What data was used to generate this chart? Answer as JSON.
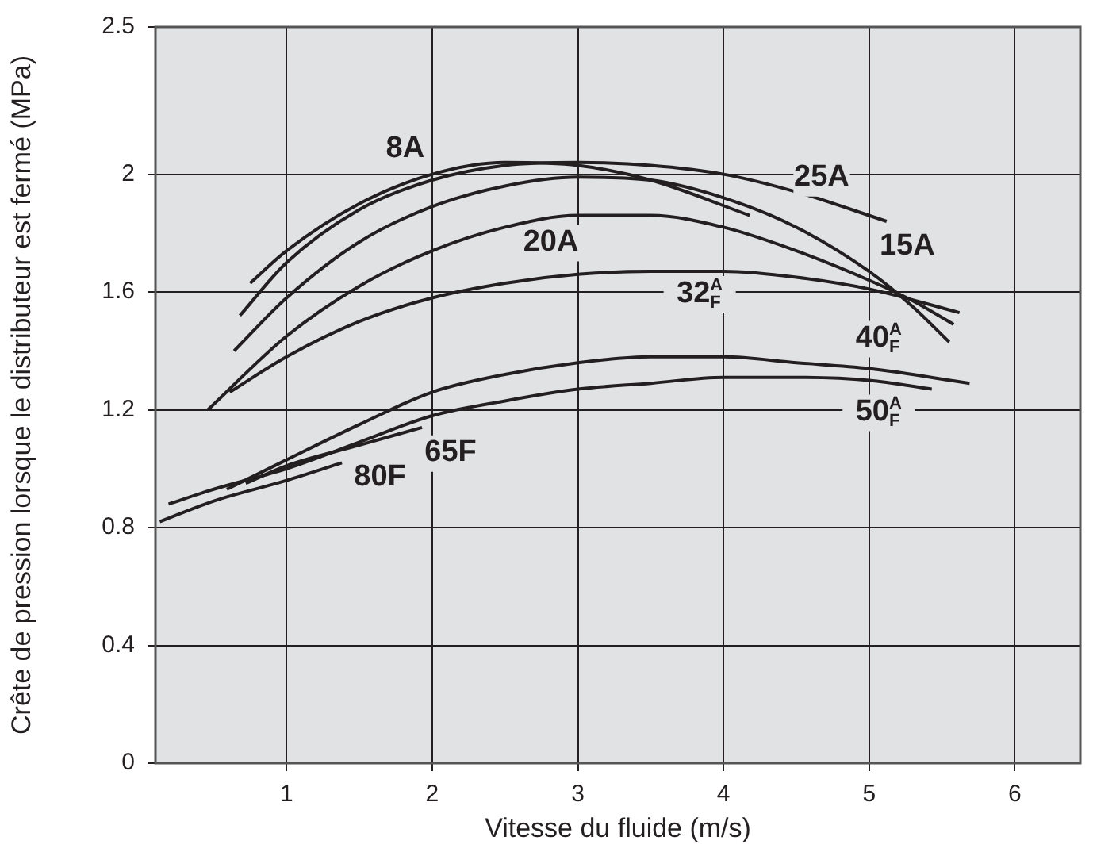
{
  "chart_data": {
    "type": "line",
    "xlabel": "Vitesse du fluide (m/s)",
    "ylabel": "Crête de pression lorsque le distributeur est fermé (MPa)",
    "xlim": [
      0.1,
      6.45
    ],
    "xticks": [
      1,
      2,
      3,
      4,
      5,
      6
    ],
    "ylim": [
      0,
      2.5
    ],
    "yticks": [
      0,
      0.4,
      0.8,
      1.2,
      1.6,
      2,
      2.5
    ],
    "grid": true,
    "marker": "none",
    "line_style": "solid",
    "series": [
      {
        "name": "8A",
        "color": "#231f20",
        "x": [
          0.75,
          1,
          1.5,
          2,
          2.5,
          3,
          3.5,
          4.18
        ],
        "values": [
          1.63,
          1.74,
          1.9,
          2.0,
          2.04,
          2.03,
          1.98,
          1.86
        ]
      },
      {
        "name": "25A",
        "color": "#231f20",
        "x": [
          0.68,
          1,
          1.5,
          2,
          2.5,
          3,
          3.5,
          4,
          4.5,
          5.12
        ],
        "values": [
          1.52,
          1.7,
          1.88,
          1.98,
          2.03,
          2.04,
          2.03,
          2.0,
          1.94,
          1.84
        ]
      },
      {
        "name": "15A",
        "color": "#231f20",
        "x": [
          0.64,
          1,
          1.5,
          2,
          2.5,
          3,
          3.5,
          4,
          4.5,
          5,
          5.3,
          5.55
        ],
        "values": [
          1.4,
          1.58,
          1.77,
          1.89,
          1.96,
          1.99,
          1.98,
          1.92,
          1.82,
          1.67,
          1.55,
          1.43
        ]
      },
      {
        "name": "20A",
        "color": "#231f20",
        "x": [
          0.46,
          1,
          1.5,
          2,
          2.5,
          3,
          3.5,
          4,
          4.5,
          5,
          5.3,
          5.58
        ],
        "values": [
          1.2,
          1.45,
          1.62,
          1.74,
          1.82,
          1.86,
          1.86,
          1.82,
          1.74,
          1.64,
          1.57,
          1.49
        ]
      },
      {
        "name": "32$^{A}$$_{F}$",
        "color": "#231f20",
        "x": [
          0.61,
          1,
          1.5,
          2,
          2.5,
          3,
          3.5,
          4,
          4.5,
          5,
          5.62
        ],
        "values": [
          1.26,
          1.38,
          1.5,
          1.58,
          1.63,
          1.66,
          1.67,
          1.67,
          1.65,
          1.61,
          1.53
        ]
      },
      {
        "name": "40$^{A}$$_{F}$",
        "color": "#231f20",
        "x": [
          0.59,
          1,
          1.5,
          2,
          2.5,
          3,
          3.5,
          4,
          4.5,
          5,
          5.69
        ],
        "values": [
          0.93,
          1.03,
          1.15,
          1.26,
          1.32,
          1.36,
          1.38,
          1.38,
          1.36,
          1.34,
          1.29
        ]
      },
      {
        "name": "50$^{A}$$_{F}$",
        "color": "#231f20",
        "x": [
          0.19,
          0.5,
          1,
          1.5,
          2,
          2.5,
          3,
          3.5,
          4,
          4.5,
          5,
          5.43
        ],
        "values": [
          0.88,
          0.93,
          1.0,
          1.09,
          1.18,
          1.23,
          1.27,
          1.29,
          1.31,
          1.31,
          1.3,
          1.27
        ]
      },
      {
        "name": "65F",
        "color": "#231f20",
        "x": [
          0.72,
          1,
          1.5,
          1.93
        ],
        "values": [
          0.95,
          1.01,
          1.08,
          1.14
        ]
      },
      {
        "name": "80F",
        "color": "#231f20",
        "x": [
          0.13,
          0.5,
          1,
          1.38
        ],
        "values": [
          0.82,
          0.89,
          0.96,
          1.02
        ]
      }
    ]
  }
}
